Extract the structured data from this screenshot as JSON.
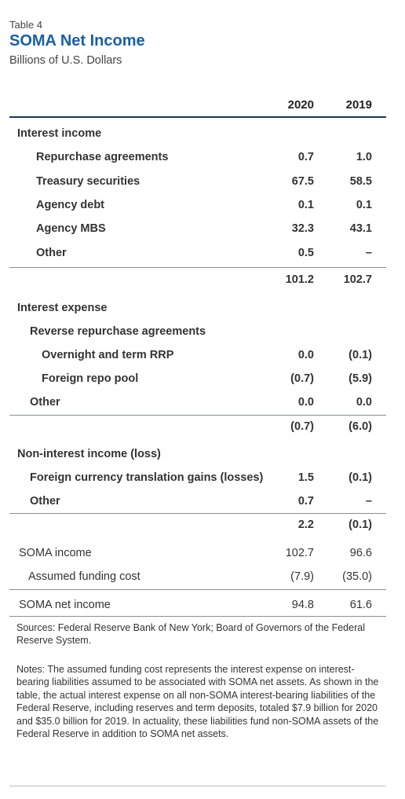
{
  "header": {
    "table_number": "Table 4",
    "title": "SOMA Net Income",
    "subtitle": "Billions of U.S. Dollars",
    "title_color": "#1b5fa3"
  },
  "columns": {
    "col1": "2020",
    "col2": "2019"
  },
  "interest_income": {
    "heading": "Interest income",
    "rows": [
      {
        "label": "Repurchase agreements",
        "v2020": "0.7",
        "v2019": "1.0"
      },
      {
        "label": "Treasury securities",
        "v2020": "67.5",
        "v2019": "58.5"
      },
      {
        "label": "Agency debt",
        "v2020": "0.1",
        "v2019": "0.1"
      },
      {
        "label": "Agency MBS",
        "v2020": "32.3",
        "v2019": "43.1"
      },
      {
        "label": "Other",
        "v2020": "0.5",
        "v2019": "–"
      }
    ],
    "total": {
      "v2020": "101.2",
      "v2019": "102.7"
    }
  },
  "interest_expense": {
    "heading": "Interest expense",
    "subheading": "Reverse repurchase agreements",
    "rows": [
      {
        "label": "Overnight and term RRP",
        "v2020": "0.0",
        "v2019": "(0.1)"
      },
      {
        "label": "Foreign repo pool",
        "v2020": "(0.7)",
        "v2019": "(5.9)"
      }
    ],
    "other": {
      "label": "Other",
      "v2020": "0.0",
      "v2019": "0.0"
    },
    "total": {
      "v2020": "(0.7)",
      "v2019": "(6.0)"
    }
  },
  "non_interest": {
    "heading": "Non-interest income (loss)",
    "rows": [
      {
        "label": "Foreign currency translation gains (losses)",
        "v2020": "1.5",
        "v2019": "(0.1)"
      },
      {
        "label": "Other",
        "v2020": "0.7",
        "v2019": "–"
      }
    ],
    "total": {
      "v2020": "2.2",
      "v2019": "(0.1)"
    }
  },
  "soma_income": {
    "label": "SOMA income",
    "v2020": "102.7",
    "v2019": "96.6"
  },
  "funding_cost": {
    "label": "Assumed funding cost",
    "v2020": "(7.9)",
    "v2019": "(35.0)"
  },
  "net_income": {
    "label": "SOMA net income",
    "v2020": "94.8",
    "v2019": "61.6"
  },
  "sources": "Sources: Federal Reserve Bank of New York; Board of Governors of the Federal Reserve System.",
  "notes": "Notes: The assumed funding cost represents the interest expense on interest-bearing liabilities assumed to be associated with SOMA net assets. As shown in the table, the actual interest expense on all non-SOMA interest-bearing liabilities of the Federal Reserve, including reserves and term deposits, totaled $7.9 billion for 2020 and $35.0 billion for 2019. In actuality, these liabilities fund non-SOMA assets of the Federal Reserve in addition to SOMA net assets."
}
